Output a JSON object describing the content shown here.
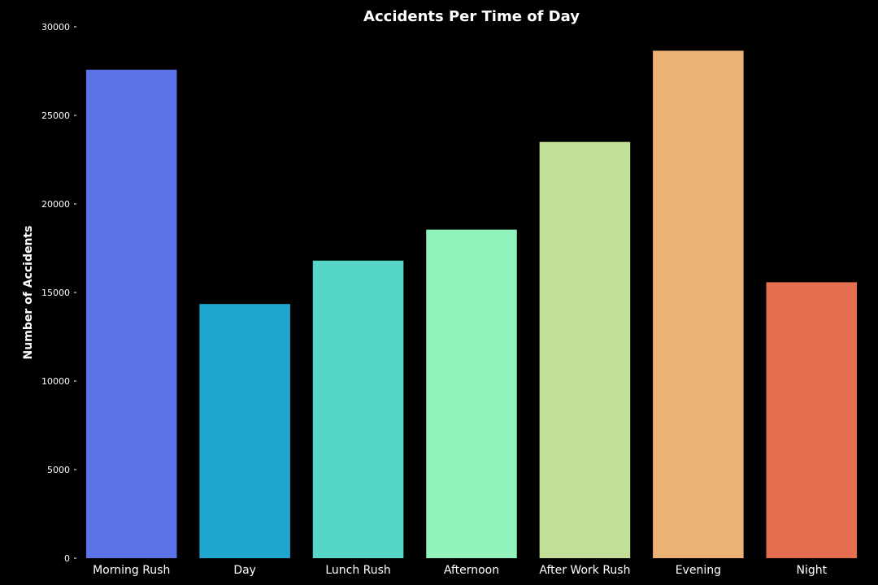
{
  "chart_data": {
    "type": "bar",
    "title": "Accidents Per Time of Day",
    "xlabel": "",
    "ylabel": "Number of Accidents",
    "categories": [
      "Morning Rush",
      "Day",
      "Lunch Rush",
      "Afternoon",
      "After Work Rush",
      "Evening",
      "Night"
    ],
    "values": [
      27580,
      14350,
      16800,
      18550,
      23500,
      28650,
      15580
    ],
    "colors": [
      "#5b73e6",
      "#1ea6cf",
      "#56d6c6",
      "#91f2bb",
      "#c2df99",
      "#ebb175",
      "#e46e4d"
    ],
    "ylim": [
      0,
      30000
    ],
    "yticks": [
      0,
      5000,
      10000,
      15000,
      20000,
      25000,
      30000
    ],
    "ytick_labels": [
      "0",
      "5000",
      "10000",
      "15000",
      "20000",
      "25000",
      "30000"
    ],
    "grid": false,
    "legend": "none",
    "background": "#000000",
    "text_color": "#ffffff"
  }
}
